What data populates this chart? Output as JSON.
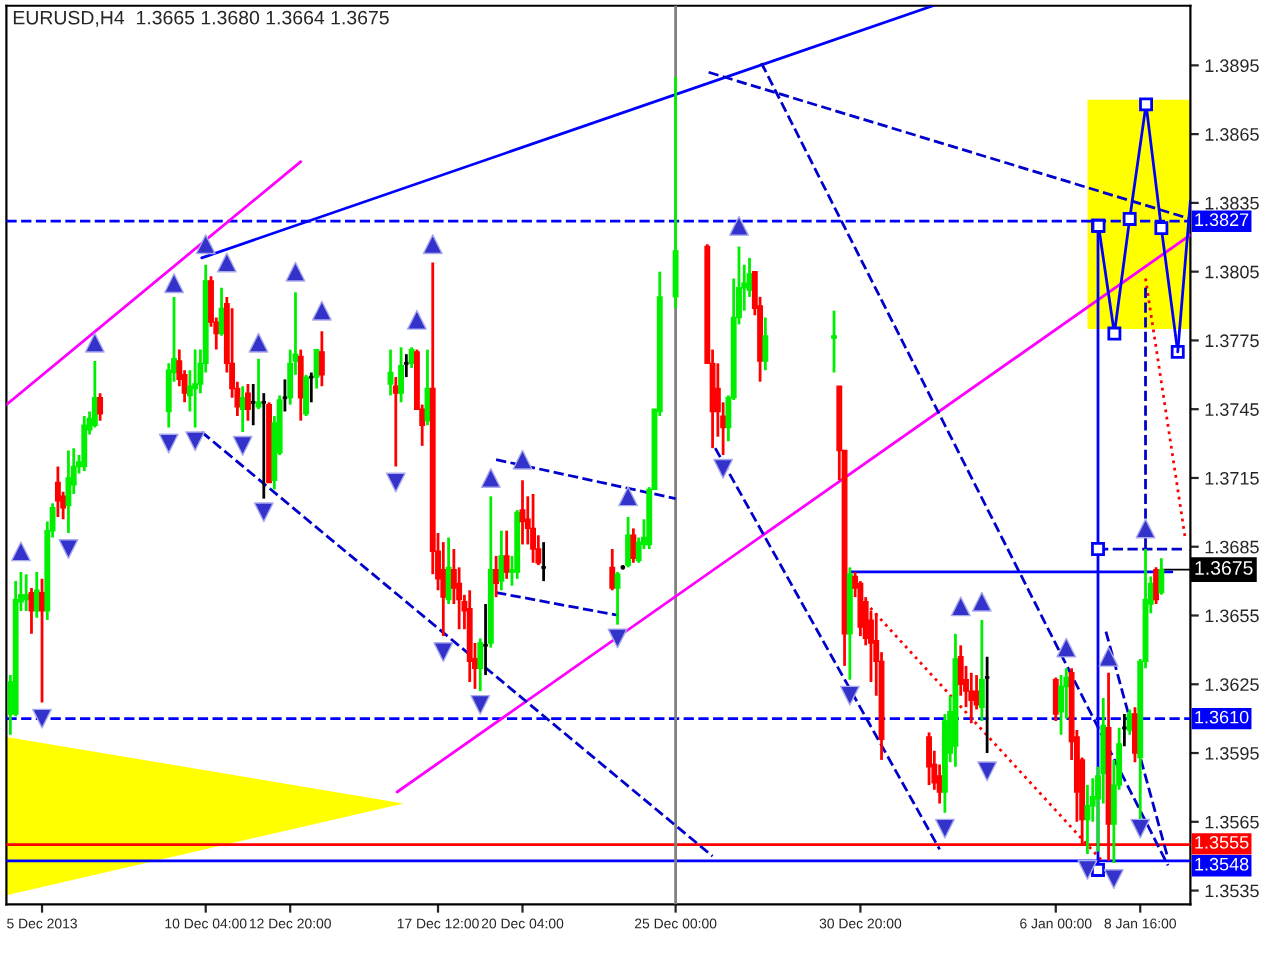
{
  "chart_data": {
    "type": "candlestick",
    "title": "EURUSD,H4  1.3665 1.3680 1.3664 1.3675",
    "x": [
      "2013-12-04T00:00",
      "2013-12-04T04:00",
      "2013-12-04T08:00",
      "2013-12-04T12:00",
      "2013-12-04T16:00",
      "2013-12-04T20:00",
      "2013-12-05T00:00",
      "2013-12-05T04:00",
      "2013-12-05T08:00",
      "2013-12-05T12:00",
      "2013-12-05T16:00",
      "2013-12-05T20:00",
      "2013-12-06T00:00",
      "2013-12-06T04:00",
      "2013-12-06T08:00",
      "2013-12-06T12:00",
      "2013-12-06T16:00",
      "2013-12-06T20:00",
      "2013-12-09T00:00",
      "2013-12-09T04:00",
      "2013-12-09T08:00",
      "2013-12-09T12:00",
      "2013-12-09T16:00",
      "2013-12-09T20:00",
      "2013-12-10T00:00",
      "2013-12-10T04:00",
      "2013-12-10T08:00",
      "2013-12-10T12:00",
      "2013-12-10T16:00",
      "2013-12-10T20:00",
      "2013-12-11T00:00",
      "2013-12-11T04:00",
      "2013-12-11T08:00",
      "2013-12-11T12:00",
      "2013-12-11T16:00",
      "2013-12-11T20:00",
      "2013-12-12T00:00",
      "2013-12-12T04:00",
      "2013-12-12T08:00",
      "2013-12-12T12:00",
      "2013-12-12T16:00",
      "2013-12-12T20:00",
      "2013-12-13T00:00",
      "2013-12-13T04:00",
      "2013-12-13T08:00",
      "2013-12-13T12:00",
      "2013-12-13T16:00",
      "2013-12-13T20:00",
      "2013-12-16T00:00",
      "2013-12-16T04:00",
      "2013-12-16T08:00",
      "2013-12-16T12:00",
      "2013-12-16T16:00",
      "2013-12-16T20:00",
      "2013-12-17T00:00",
      "2013-12-17T04:00",
      "2013-12-17T08:00",
      "2013-12-17T12:00",
      "2013-12-17T16:00",
      "2013-12-17T20:00",
      "2013-12-18T00:00",
      "2013-12-18T04:00",
      "2013-12-18T08:00",
      "2013-12-18T12:00",
      "2013-12-18T16:00",
      "2013-12-18T20:00",
      "2013-12-19T00:00",
      "2013-12-19T04:00",
      "2013-12-19T08:00",
      "2013-12-19T12:00",
      "2013-12-19T16:00",
      "2013-12-19T20:00",
      "2013-12-20T00:00",
      "2013-12-20T04:00",
      "2013-12-20T08:00",
      "2013-12-20T12:00",
      "2013-12-20T16:00",
      "2013-12-20T20:00",
      "2013-12-23T00:00",
      "2013-12-23T04:00",
      "2013-12-23T08:00",
      "2013-12-23T12:00",
      "2013-12-23T16:00",
      "2013-12-23T20:00",
      "2013-12-24T00:00",
      "2013-12-24T04:00",
      "2013-12-24T08:00",
      "2013-12-24T12:00",
      "2013-12-25T00:00",
      "2013-12-26T00:00",
      "2013-12-26T04:00",
      "2013-12-26T08:00",
      "2013-12-26T12:00",
      "2013-12-26T16:00",
      "2013-12-26T20:00",
      "2013-12-27T00:00",
      "2013-12-27T04:00",
      "2013-12-27T08:00",
      "2013-12-27T12:00",
      "2013-12-27T16:00",
      "2013-12-27T20:00",
      "2013-12-30T00:00",
      "2013-12-30T04:00",
      "2013-12-30T08:00",
      "2013-12-30T12:00",
      "2013-12-30T16:00",
      "2013-12-30T20:00",
      "2013-12-31T00:00",
      "2013-12-31T04:00",
      "2013-12-31T08:00",
      "2013-12-31T12:00",
      "2014-01-02T00:00",
      "2014-01-02T04:00",
      "2014-01-02T08:00",
      "2014-01-02T12:00",
      "2014-01-02T16:00",
      "2014-01-02T20:00",
      "2014-01-03T00:00",
      "2014-01-03T04:00",
      "2014-01-03T08:00",
      "2014-01-03T12:00",
      "2014-01-03T16:00",
      "2014-01-03T20:00",
      "2014-01-06T00:00",
      "2014-01-06T04:00",
      "2014-01-06T08:00",
      "2014-01-06T12:00",
      "2014-01-06T16:00",
      "2014-01-06T20:00",
      "2014-01-07T00:00",
      "2014-01-07T04:00",
      "2014-01-07T08:00",
      "2014-01-07T12:00",
      "2014-01-07T16:00",
      "2014-01-07T20:00",
      "2014-01-08T00:00",
      "2014-01-08T04:00",
      "2014-01-08T08:00",
      "2014-01-08T12:00",
      "2014-01-08T16:00",
      "2014-01-08T20:00",
      "2014-01-09T00:00",
      "2014-01-09T04:00",
      "2014-01-09T08:00"
    ],
    "ohlc": [
      [
        1.3612,
        1.3629,
        1.3603,
        1.3626
      ],
      [
        1.3612,
        1.367,
        1.3611,
        1.3662
      ],
      [
        1.3661,
        1.3674,
        1.3657,
        1.3664
      ],
      [
        1.3662,
        1.3673,
        1.3657,
        1.3664
      ],
      [
        1.3665,
        1.3667,
        1.3647,
        1.3657
      ],
      [
        1.3657,
        1.3674,
        1.3654,
        1.3666
      ],
      [
        1.3665,
        1.3671,
        1.3617,
        1.3657
      ],
      [
        1.3657,
        1.3696,
        1.3653,
        1.3692
      ],
      [
        1.3692,
        1.3704,
        1.3689,
        1.3702
      ],
      [
        1.3713,
        1.372,
        1.3698,
        1.3705
      ],
      [
        1.3707,
        1.3709,
        1.3697,
        1.3702
      ],
      [
        1.3703,
        1.3727,
        1.3691,
        1.3715
      ],
      [
        1.3712,
        1.3728,
        1.3708,
        1.372
      ],
      [
        1.372,
        1.3725,
        1.3717,
        1.3722
      ],
      [
        1.372,
        1.3742,
        1.3718,
        1.3738
      ],
      [
        1.3736,
        1.3744,
        1.3734,
        1.3741
      ],
      [
        1.3738,
        1.3766,
        1.3737,
        1.375
      ],
      [
        1.375,
        1.3752,
        1.374,
        1.3743
      ],
      [
        1.3744,
        1.3765,
        1.3737,
        1.3762
      ],
      [
        1.3761,
        1.3794,
        1.3757,
        1.3767
      ],
      [
        1.3766,
        1.3771,
        1.3755,
        1.3758
      ],
      [
        1.376,
        1.3762,
        1.3748,
        1.3752
      ],
      [
        1.3751,
        1.3762,
        1.3744,
        1.3755
      ],
      [
        1.3754,
        1.3771,
        1.3737,
        1.3756
      ],
      [
        1.3756,
        1.3771,
        1.3752,
        1.3765
      ],
      [
        1.3765,
        1.3808,
        1.3761,
        1.3801
      ],
      [
        1.3801,
        1.3803,
        1.3781,
        1.3783
      ],
      [
        1.3783,
        1.3785,
        1.3771,
        1.3778
      ],
      [
        1.3778,
        1.3798,
        1.3777,
        1.3789
      ],
      [
        1.3791,
        1.3794,
        1.3761,
        1.3765
      ],
      [
        1.3765,
        1.3789,
        1.375,
        1.3754
      ],
      [
        1.3754,
        1.3757,
        1.3742,
        1.3746
      ],
      [
        1.3745,
        1.3755,
        1.3735,
        1.375
      ],
      [
        1.3752,
        1.3756,
        1.374,
        1.3745
      ],
      [
        1.3748,
        1.3756,
        1.3738,
        1.3748
      ],
      [
        1.3746,
        1.3767,
        1.3745,
        1.3748
      ],
      [
        1.3748,
        1.3752,
        1.3706,
        1.3748
      ],
      [
        1.3747,
        1.3748,
        1.3713,
        1.3713
      ],
      [
        1.3714,
        1.3742,
        1.371,
        1.3739
      ],
      [
        1.3726,
        1.3751,
        1.3725,
        1.3749
      ],
      [
        1.375,
        1.3758,
        1.3744,
        1.375
      ],
      [
        1.375,
        1.3771,
        1.3747,
        1.3765
      ],
      [
        1.3766,
        1.3796,
        1.376,
        1.3769
      ],
      [
        1.3768,
        1.3771,
        1.374,
        1.375
      ],
      [
        1.3743,
        1.376,
        1.3742,
        1.3759
      ],
      [
        1.3759,
        1.3761,
        1.3748,
        1.3759
      ],
      [
        1.3759,
        1.3771,
        1.3754,
        1.3771
      ],
      [
        1.377,
        1.3779,
        1.3755,
        1.376
      ],
      [
        1.3756,
        1.3771,
        1.3751,
        1.3761
      ],
      [
        1.3755,
        1.3759,
        1.372,
        1.3752
      ],
      [
        1.3752,
        1.3772,
        1.3748,
        1.3764
      ],
      [
        1.3765,
        1.3769,
        1.3759,
        1.3765
      ],
      [
        1.3765,
        1.3772,
        1.3763,
        1.3771
      ],
      [
        1.377,
        1.3771,
        1.3745,
        1.3745
      ],
      [
        1.3745,
        1.3747,
        1.3729,
        1.3738
      ],
      [
        1.374,
        1.3771,
        1.3738,
        1.3754
      ],
      [
        1.3754,
        1.3809,
        1.3673,
        1.3683
      ],
      [
        1.3683,
        1.3691,
        1.3666,
        1.3671
      ],
      [
        1.3675,
        1.3687,
        1.3646,
        1.3663
      ],
      [
        1.3662,
        1.3689,
        1.366,
        1.3676
      ],
      [
        1.3675,
        1.3684,
        1.366,
        1.3667
      ],
      [
        1.3669,
        1.3676,
        1.3649,
        1.3662
      ],
      [
        1.3661,
        1.3664,
        1.3649,
        1.3657
      ],
      [
        1.3658,
        1.3666,
        1.3626,
        1.3635
      ],
      [
        1.3636,
        1.3643,
        1.3623,
        1.3632
      ],
      [
        1.3632,
        1.3645,
        1.3622,
        1.3643
      ],
      [
        1.3642,
        1.366,
        1.3629,
        1.3642
      ],
      [
        1.3643,
        1.3707,
        1.3641,
        1.3675
      ],
      [
        1.3675,
        1.3681,
        1.3663,
        1.3669
      ],
      [
        1.367,
        1.3692,
        1.3666,
        1.3681
      ],
      [
        1.3681,
        1.3692,
        1.3671,
        1.3674
      ],
      [
        1.3674,
        1.3681,
        1.3668,
        1.3675
      ],
      [
        1.3674,
        1.3701,
        1.3671,
        1.37
      ],
      [
        1.3701,
        1.3714,
        1.3686,
        1.3696
      ],
      [
        1.3697,
        1.3707,
        1.3686,
        1.3693
      ],
      [
        1.3693,
        1.3708,
        1.3678,
        1.3684
      ],
      [
        1.3684,
        1.369,
        1.3677,
        1.3678
      ],
      [
        1.3676,
        1.3687,
        1.367,
        1.3676
      ],
      [
        1.3676,
        1.3684,
        1.3666,
        1.3667
      ],
      [
        1.3667,
        1.3674,
        1.3651,
        1.3673
      ],
      [
        1.3676,
        1.3677,
        1.3675,
        1.3676
      ],
      [
        1.3677,
        1.3698,
        1.3676,
        1.369
      ],
      [
        1.369,
        1.3693,
        1.3678,
        1.368
      ],
      [
        1.3679,
        1.3689,
        1.3678,
        1.3687
      ],
      [
        1.3686,
        1.3697,
        1.3684,
        1.3689
      ],
      [
        1.3686,
        1.3711,
        1.3684,
        1.371
      ],
      [
        1.371,
        1.3745,
        1.371,
        1.3745
      ],
      [
        1.3744,
        1.3805,
        1.3742,
        1.3794
      ],
      [
        1.3794,
        1.389,
        1.3789,
        1.3814
      ],
      [
        1.3816,
        1.3817,
        1.3765,
        1.3765
      ],
      [
        1.3765,
        1.3771,
        1.3728,
        1.3744
      ],
      [
        1.3754,
        1.3765,
        1.3733,
        1.3744
      ],
      [
        1.3742,
        1.3748,
        1.3725,
        1.3737
      ],
      [
        1.3737,
        1.3751,
        1.3731,
        1.375
      ],
      [
        1.375,
        1.3802,
        1.3749,
        1.3785
      ],
      [
        1.3785,
        1.3816,
        1.3782,
        1.3798
      ],
      [
        1.3798,
        1.3808,
        1.3788,
        1.38
      ],
      [
        1.3797,
        1.3811,
        1.3794,
        1.3804
      ],
      [
        1.3805,
        1.3805,
        1.3786,
        1.3789
      ],
      [
        1.379,
        1.3794,
        1.3757,
        1.3766
      ],
      [
        1.3766,
        1.3785,
        1.3762,
        1.3777
      ],
      [
        1.3776,
        1.3788,
        1.3761,
        1.3777
      ],
      [
        1.3755,
        1.3755,
        1.3714,
        1.3727
      ],
      [
        1.3727,
        1.3727,
        1.3633,
        1.3647
      ],
      [
        1.3647,
        1.3676,
        1.3627,
        1.3673
      ],
      [
        1.3672,
        1.3674,
        1.3663,
        1.3667
      ],
      [
        1.3669,
        1.367,
        1.3646,
        1.365
      ],
      [
        1.3661,
        1.3663,
        1.3642,
        1.3645
      ],
      [
        1.3653,
        1.3657,
        1.3626,
        1.3643
      ],
      [
        1.3644,
        1.3656,
        1.362,
        1.3635
      ],
      [
        1.3635,
        1.3639,
        1.3592,
        1.3601
      ],
      [
        1.3602,
        1.3604,
        1.3581,
        1.3589
      ],
      [
        1.359,
        1.3596,
        1.3579,
        1.3582
      ],
      [
        1.3585,
        1.359,
        1.3573,
        1.3578
      ],
      [
        1.3578,
        1.3612,
        1.3569,
        1.3609
      ],
      [
        1.3595,
        1.362,
        1.3591,
        1.3613
      ],
      [
        1.3598,
        1.3647,
        1.3589,
        1.3636
      ],
      [
        1.3637,
        1.3642,
        1.362,
        1.3625
      ],
      [
        1.3627,
        1.3633,
        1.3615,
        1.3622
      ],
      [
        1.3622,
        1.363,
        1.3608,
        1.3618
      ],
      [
        1.3622,
        1.3629,
        1.3614,
        1.3616
      ],
      [
        1.3615,
        1.3653,
        1.3609,
        1.3627
      ],
      [
        1.3628,
        1.3637,
        1.3595,
        1.3628
      ],
      [
        1.3627,
        1.3628,
        1.3609,
        1.3612
      ],
      [
        1.3613,
        1.3629,
        1.3603,
        1.3624
      ],
      [
        1.3624,
        1.3632,
        1.361,
        1.3628
      ],
      [
        1.363,
        1.3632,
        1.3592,
        1.36
      ],
      [
        1.3602,
        1.3605,
        1.3565,
        1.3578
      ],
      [
        1.3592,
        1.3593,
        1.3555,
        1.3566
      ],
      [
        1.3566,
        1.3581,
        1.3551,
        1.3572
      ],
      [
        1.3572,
        1.3584,
        1.3565,
        1.3576
      ],
      [
        1.3575,
        1.3589,
        1.3552,
        1.3585
      ],
      [
        1.3586,
        1.3619,
        1.3573,
        1.3607
      ],
      [
        1.3606,
        1.363,
        1.3548,
        1.3564
      ],
      [
        1.3564,
        1.3592,
        1.3547,
        1.3581
      ],
      [
        1.3581,
        1.3606,
        1.3579,
        1.3599
      ],
      [
        1.3606,
        1.3612,
        1.3598,
        1.3606
      ],
      [
        1.3605,
        1.3614,
        1.3603,
        1.3612
      ],
      [
        1.3612,
        1.3615,
        1.3591,
        1.3595
      ],
      [
        1.3593,
        1.3636,
        1.3565,
        1.3635
      ],
      [
        1.3635,
        1.3684,
        1.3632,
        1.3662
      ],
      [
        1.366,
        1.3672,
        1.3656,
        1.3669
      ],
      [
        1.3675,
        1.3676,
        1.366,
        1.3662
      ],
      [
        1.3665,
        1.368,
        1.3664,
        1.3675
      ]
    ],
    "colors": [
      "#00ee00",
      "#00ee00",
      "#00ee00",
      "#00ee00",
      "#ff0000",
      "#00ee00",
      "#ff0000",
      "#00ee00",
      "#00ee00",
      "#ff0000",
      "#ff0000",
      "#00ee00",
      "#00ee00",
      "#00ee00",
      "#00ee00",
      "#00ee00",
      "#00ee00",
      "#ff0000",
      "#00ee00",
      "#00ee00",
      "#ff0000",
      "#ff0000",
      "#00ee00",
      "#00ee00",
      "#00ee00",
      "#00ee00",
      "#ff0000",
      "#ff0000",
      "#00ee00",
      "#ff0000",
      "#ff0000",
      "#ff0000",
      "#00ee00",
      "#ff0000",
      "#000000",
      "#00ee00",
      "#000000",
      "#ff0000",
      "#00ee00",
      "#00ee00",
      "#000000",
      "#00ee00",
      "#00ee00",
      "#ff0000",
      "#00ee00",
      "#000000",
      "#00ee00",
      "#ff0000",
      "#00ee00",
      "#ff0000",
      "#00ee00",
      "#000000",
      "#00ee00",
      "#ff0000",
      "#ff0000",
      "#00ee00",
      "#ff0000",
      "#ff0000",
      "#ff0000",
      "#00ee00",
      "#ff0000",
      "#ff0000",
      "#ff0000",
      "#ff0000",
      "#ff0000",
      "#00ee00",
      "#000000",
      "#00ee00",
      "#ff0000",
      "#00ee00",
      "#ff0000",
      "#00ee00",
      "#00ee00",
      "#ff0000",
      "#ff0000",
      "#ff0000",
      "#ff0000",
      "#000000",
      "#ff0000",
      "#00ee00",
      "#000000",
      "#00ee00",
      "#ff0000",
      "#00ee00",
      "#00ee00",
      "#00ee00",
      "#00ee00",
      "#00ee00",
      "#00ee00",
      "#ff0000",
      "#ff0000",
      "#ff0000",
      "#ff0000",
      "#00ee00",
      "#00ee00",
      "#00ee00",
      "#00ee00",
      "#00ee00",
      "#ff0000",
      "#ff0000",
      "#00ee00",
      "#00ee00",
      "#ff0000",
      "#ff0000",
      "#00ee00",
      "#ff0000",
      "#ff0000",
      "#ff0000",
      "#ff0000",
      "#ff0000",
      "#ff0000",
      "#ff0000",
      "#ff0000",
      "#ff0000",
      "#00ee00",
      "#00ee00",
      "#00ee00",
      "#ff0000",
      "#ff0000",
      "#ff0000",
      "#ff0000",
      "#00ee00",
      "#000000",
      "#ff0000",
      "#00ee00",
      "#00ee00",
      "#ff0000",
      "#ff0000",
      "#ff0000",
      "#00ee00",
      "#00ee00",
      "#00ee00",
      "#00ee00",
      "#ff0000",
      "#00ee00",
      "#00ee00",
      "#000000",
      "#00ee00",
      "#ff0000",
      "#00ee00",
      "#00ee00",
      "#00ee00",
      "#ff0000",
      "#00ee00"
    ],
    "series": [
      {
        "type": "line",
        "color": "#ffff00",
        "x": [
          "2014-01-07T00:00",
          "2014-01-10T06:00"
        ],
        "values": [
          null,
          null
        ],
        "lower": [
          1.378,
          1.378
        ],
        "upper": [
          1.388,
          1.388
        ]
      },
      {
        "type": "line",
        "color": "#ffff00",
        "x": [
          "2013-12-03T21:00",
          "2013-12-16T10:00"
        ],
        "values": [
          null,
          null
        ],
        "lower": [
          1.3533,
          1.3573
        ],
        "upper": [
          1.3602,
          1.3573
        ]
      },
      {
        "type": "line",
        "color": "#0000ff",
        "line_style": "solid",
        "x": [
          "2013-12-10T01:00",
          "2014-01-02T03:00"
        ],
        "values": [
          1.3811,
          1.3921
        ]
      },
      {
        "type": "line",
        "color": "#ff00ff",
        "line_style": "solid",
        "x": [
          "2013-12-03T21:00",
          "2013-12-13T04:00"
        ],
        "values": [
          1.3747,
          1.3853
        ]
      },
      {
        "type": "line",
        "color": "#ff00ff",
        "line_style": "solid",
        "x": [
          "2013-12-16T05:00",
          "2014-01-10T06:00"
        ],
        "values": [
          1.3578,
          1.3821
        ]
      },
      {
        "type": "line",
        "color": "#0000cc",
        "line_style": "dashed",
        "x": [
          "2013-12-26T01:00",
          "2014-01-10T06:00"
        ],
        "values": [
          1.3892,
          1.3828
        ]
      },
      {
        "type": "line",
        "color": "#0000cc",
        "line_style": "dashed",
        "x": [
          "2013-12-27T17:00",
          "2014-01-09T13:00"
        ],
        "values": [
          1.3896,
          1.3546
        ]
      },
      {
        "type": "line",
        "color": "#0000cc",
        "line_style": "dashed",
        "x": [
          "2013-12-10T01:00",
          "2013-12-26T04:00"
        ],
        "values": [
          1.3735,
          1.355
        ]
      },
      {
        "type": "line",
        "color": "#0000cc",
        "line_style": "dashed",
        "x": [
          "2013-12-19T08:00",
          "2013-12-25T00:00"
        ],
        "values": [
          1.3723,
          1.3706
        ]
      },
      {
        "type": "line",
        "color": "#0000cc",
        "line_style": "dashed",
        "x": [
          "2013-12-19T08:00",
          "2013-12-23T05:00"
        ],
        "values": [
          1.3665,
          1.3655
        ]
      },
      {
        "type": "line",
        "color": "#0000cc",
        "line_style": "dashed",
        "x": [
          "2013-12-26T06:00",
          "2014-01-02T08:00"
        ],
        "values": [
          1.3728,
          1.3553
        ]
      },
      {
        "type": "line",
        "color": "#0000cc",
        "line_style": "dashed",
        "x": [
          "2014-01-07T14:00",
          "2014-01-09T13:00"
        ],
        "values": [
          1.3648,
          1.3549
        ]
      },
      {
        "type": "line",
        "color": "#ff0000",
        "line_style": "dotted",
        "x": [
          "2013-12-30T20:00",
          "2014-01-07T11:00"
        ],
        "values": [
          1.3663,
          1.3548
        ]
      },
      {
        "type": "line",
        "color": "#ff0000",
        "line_style": "dotted",
        "x": [
          "2014-01-08T20:00",
          "2014-01-10T02:00"
        ],
        "values": [
          1.3802,
          1.3689
        ]
      },
      {
        "type": "line",
        "color": "#0000cc",
        "line_style": "dashed",
        "x": [
          "2014-01-08T20:00",
          "2014-01-08T20:00"
        ],
        "values": [
          1.3798,
          1.3684
        ]
      },
      {
        "type": "line",
        "color": "#0000cc",
        "line_style": "dashed",
        "x": [
          "2014-01-07T08:00",
          "2014-01-10T00:00"
        ],
        "values": [
          1.3684,
          1.3684
        ]
      },
      {
        "type": "line",
        "color": "#0000ff",
        "line_style": "solid",
        "x": [
          "2013-12-30T13:00",
          "2014-01-09T16:00"
        ],
        "values": [
          1.3674,
          1.3674
        ]
      },
      {
        "type": "line",
        "color": "#0000ff",
        "line_style": "solid",
        "marker": "square",
        "x": [
          "2014-01-07T08:00",
          "2014-01-07T08:00",
          "2014-01-07T08:00"
        ],
        "values": [
          1.3825,
          1.3684,
          1.3544
        ]
      },
      {
        "type": "line",
        "color": "#0000ff",
        "line_style": "solid",
        "marker": "square",
        "x": [
          "2014-01-07T08:24",
          "2014-01-07T20:24",
          "2014-01-08T08:00",
          "2014-01-08T20:24",
          "2014-01-09T08:00",
          "2014-01-09T20:24"
        ],
        "values": [
          1.3825,
          1.3778,
          1.3828,
          1.3878,
          1.3824,
          1.377
        ]
      },
      {
        "type": "line",
        "color": "#0000ff",
        "line_style": "solid",
        "x": [
          "2014-01-09T20:24",
          "2014-01-10T06:00"
        ],
        "values": [
          1.377,
          1.3836
        ]
      },
      {
        "type": "scatter",
        "color": "#3333cc",
        "marker": "triangle",
        "x": [
          "2013-12-04T08:00",
          "2013-12-06T16:00",
          "2013-12-09T04:00",
          "2013-12-10T04:00",
          "2013-12-10T20:00",
          "2013-12-11T20:00",
          "2013-12-13T00:00",
          "2013-12-13T20:00",
          "2013-12-16T20:00",
          "2013-12-17T08:00",
          "2013-12-19T04:00",
          "2013-12-20T04:00",
          "2013-12-23T12:00",
          "2013-12-27T00:00",
          "2014-01-03T00:00",
          "2014-01-03T16:00",
          "2014-01-06T08:00",
          "2014-01-07T16:00",
          "2014-01-08T20:00"
        ],
        "values": [
          1.3683,
          1.3774,
          1.38,
          1.3817,
          1.3809,
          1.3774,
          1.3805,
          1.3788,
          1.3784,
          1.3817,
          1.3715,
          1.3723,
          1.3707,
          1.3825,
          1.3659,
          1.3661,
          1.3641,
          1.3637,
          1.3693
        ]
      },
      {
        "type": "scatter",
        "color": "#3333cc",
        "marker": "triangle_down",
        "x": [
          "2013-12-05T00:00",
          "2013-12-05T20:00",
          "2013-12-09T00:00",
          "2013-12-09T20:00",
          "2013-12-11T08:00",
          "2013-12-12T00:00",
          "2013-12-16T04:00",
          "2013-12-17T16:00",
          "2013-12-18T20:00",
          "2013-12-23T04:00",
          "2013-12-26T12:00",
          "2013-12-30T12:00",
          "2014-01-02T12:00",
          "2014-01-03T20:00",
          "2014-01-07T00:00",
          "2014-01-07T20:00",
          "2014-01-08T16:00"
        ],
        "values": [
          1.361,
          1.3684,
          1.373,
          1.3731,
          1.3729,
          1.37,
          1.3713,
          1.3639,
          1.3616,
          1.3645,
          1.3719,
          1.362,
          1.3562,
          1.3587,
          1.3544,
          1.354,
          1.3562
        ]
      }
    ],
    "ref_lines": [
      {
        "axis": "y",
        "value": 1.3827,
        "label": "1.3827",
        "color": "#0000ff",
        "line_style": "dashed"
      },
      {
        "axis": "y",
        "value": 1.361,
        "label": "1.3610",
        "color": "#0000ff",
        "line_style": "dashed"
      },
      {
        "axis": "y",
        "value": 1.3555,
        "label": "1.3555",
        "color": "#ff0000",
        "line_style": "solid"
      },
      {
        "axis": "y",
        "value": 1.3548,
        "label": "1.3548",
        "color": "#0000ff",
        "line_style": "solid"
      },
      {
        "axis": "x",
        "value": "2013-12-25T00:00",
        "label": null,
        "color": "#808080",
        "line_style": "solid"
      }
    ],
    "annotations": [
      {
        "text": "1.3675",
        "x": "2014-01-09T08:00",
        "y": 1.3675
      }
    ],
    "xlim": [
      "2013-12-03T21:00",
      "2014-01-10T06:00"
    ],
    "ylim": [
      1.3529,
      1.3921
    ],
    "xticks": [
      {
        "value": "2013-12-05T00:00",
        "label": "5 Dec 2013"
      },
      {
        "value": "2013-12-10T04:00",
        "label": "10 Dec 04:00"
      },
      {
        "value": "2013-12-12T20:00",
        "label": "12 Dec 20:00"
      },
      {
        "value": "2013-12-17T12:00",
        "label": "17 Dec 12:00"
      },
      {
        "value": "2013-12-20T04:00",
        "label": "20 Dec 04:00"
      },
      {
        "value": "2013-12-25T00:00",
        "label": "25 Dec 00:00"
      },
      {
        "value": "2013-12-30T20:00",
        "label": "30 Dec 20:00"
      },
      {
        "value": "2014-01-06T00:00",
        "label": "6 Jan 00:00"
      },
      {
        "value": "2014-01-08T16:00",
        "label": "8 Jan 16:00"
      }
    ],
    "yticks": [
      1.3535,
      1.3565,
      1.3595,
      1.3625,
      1.3655,
      1.3685,
      1.3715,
      1.3745,
      1.3775,
      1.3805,
      1.3835,
      1.3865,
      1.3895
    ],
    "grid": false,
    "legend": false
  }
}
